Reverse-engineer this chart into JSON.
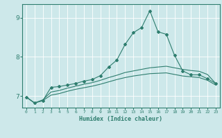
{
  "xlabel": "Humidex (Indice chaleur)",
  "xlim": [
    -0.5,
    23.5
  ],
  "ylim": [
    6.7,
    9.35
  ],
  "yticks": [
    7,
    8,
    9
  ],
  "xticks": [
    0,
    1,
    2,
    3,
    4,
    5,
    6,
    7,
    8,
    9,
    10,
    11,
    12,
    13,
    14,
    15,
    16,
    17,
    18,
    19,
    20,
    21,
    22,
    23
  ],
  "background_color": "#cde8ea",
  "grid_color": "#ffffff",
  "line_color": "#2e7d6e",
  "x": [
    0,
    1,
    2,
    3,
    4,
    5,
    6,
    7,
    8,
    9,
    10,
    11,
    12,
    13,
    14,
    15,
    16,
    17,
    18,
    19,
    20,
    21,
    22,
    23
  ],
  "line1": [
    6.97,
    6.82,
    6.88,
    7.22,
    7.24,
    7.28,
    7.32,
    7.38,
    7.42,
    7.52,
    7.74,
    7.92,
    8.32,
    8.62,
    8.75,
    9.18,
    8.64,
    8.58,
    8.04,
    7.64,
    7.54,
    7.54,
    7.44,
    7.32
  ],
  "line2": [
    6.97,
    6.82,
    6.9,
    7.1,
    7.14,
    7.2,
    7.25,
    7.3,
    7.34,
    7.4,
    7.47,
    7.53,
    7.6,
    7.64,
    7.68,
    7.72,
    7.74,
    7.76,
    7.72,
    7.68,
    7.65,
    7.63,
    7.55,
    7.32
  ],
  "line3": [
    6.97,
    6.82,
    6.88,
    7.02,
    7.06,
    7.12,
    7.17,
    7.21,
    7.25,
    7.3,
    7.36,
    7.42,
    7.47,
    7.51,
    7.54,
    7.57,
    7.58,
    7.59,
    7.55,
    7.51,
    7.49,
    7.47,
    7.4,
    7.28
  ],
  "marker_style": "D",
  "marker_size": 2.0,
  "line_width": 0.8
}
